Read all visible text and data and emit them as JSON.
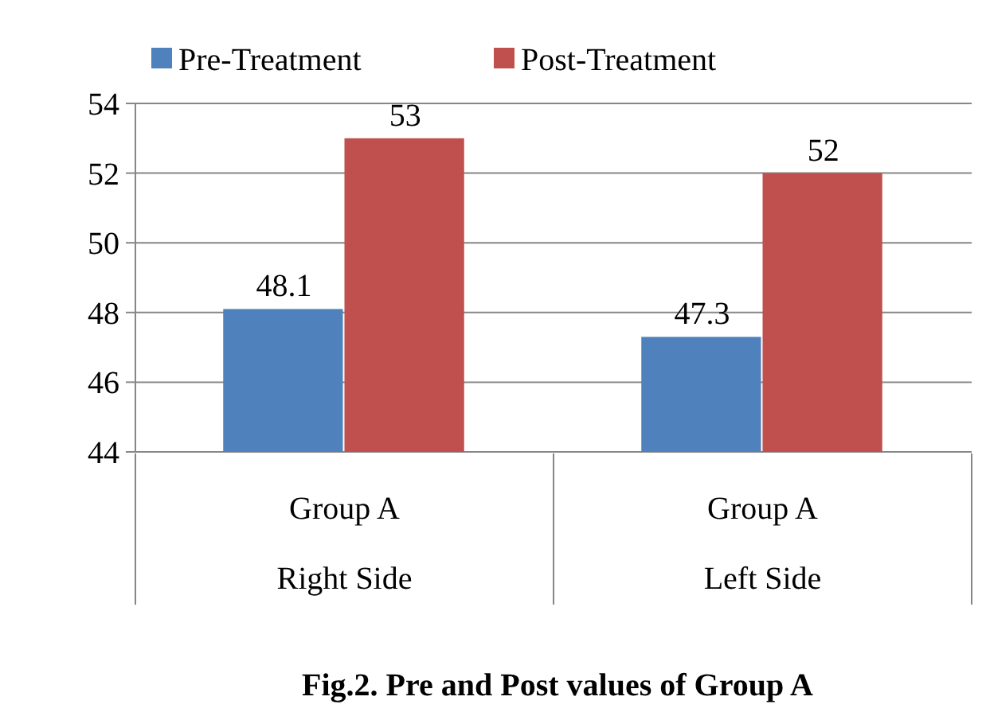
{
  "chart_data": {
    "type": "bar",
    "title": "Fig.2.  Pre and Post values of Group A",
    "categories": [
      "Group A\nRight Side",
      "Group A\nLeft Side"
    ],
    "series": [
      {
        "name": "Pre-Treatment",
        "color": "#4f81bd",
        "values": [
          48.1,
          47.3
        ]
      },
      {
        "name": "Post-Treatment",
        "color": "#c0504d",
        "values": [
          53,
          52
        ]
      }
    ],
    "ylim": [
      44,
      54
    ],
    "yticks": [
      44,
      46,
      48,
      50,
      52,
      54
    ],
    "grid": "y",
    "legend": "top",
    "data_labels": true
  }
}
